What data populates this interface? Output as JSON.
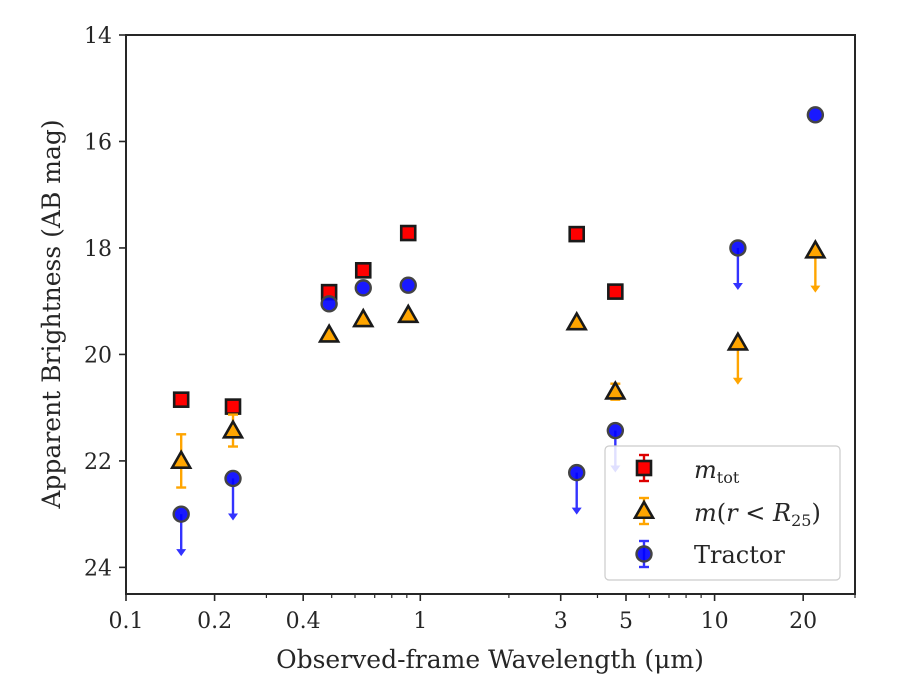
{
  "chart_data": {
    "type": "scatter",
    "xlabel": "Observed-frame Wavelength (μm)",
    "ylabel": "Apparent Brightness (AB mag)",
    "x_scale": "log",
    "xlim": [
      0.1,
      30
    ],
    "ylim": [
      24.5,
      14
    ],
    "y_inverted": true,
    "x_ticks": [
      {
        "value": 0.1,
        "label": "0.1"
      },
      {
        "value": 0.2,
        "label": "0.2"
      },
      {
        "value": 0.4,
        "label": "0.4"
      },
      {
        "value": 1,
        "label": "1"
      },
      {
        "value": 3,
        "label": "3"
      },
      {
        "value": 5,
        "label": "5"
      },
      {
        "value": 10,
        "label": "10"
      },
      {
        "value": 20,
        "label": "20"
      }
    ],
    "y_ticks": [
      {
        "value": 14,
        "label": "14"
      },
      {
        "value": 16,
        "label": "16"
      },
      {
        "value": 18,
        "label": "18"
      },
      {
        "value": 20,
        "label": "20"
      },
      {
        "value": 22,
        "label": "22"
      },
      {
        "value": 24,
        "label": "24"
      }
    ],
    "grid": false,
    "legend_position": "bottom-right",
    "series": [
      {
        "name": "m_tot",
        "marker": "square",
        "fill": "#ff0000",
        "edge": "#1a1a1a",
        "err_color": "#dd0000",
        "points": [
          {
            "x": 0.154,
            "y": 20.85
          },
          {
            "x": 0.231,
            "y": 20.98
          },
          {
            "x": 0.49,
            "y": 18.83
          },
          {
            "x": 0.64,
            "y": 18.42
          },
          {
            "x": 0.91,
            "y": 17.72
          },
          {
            "x": 3.4,
            "y": 17.74
          },
          {
            "x": 4.6,
            "y": 18.82
          }
        ]
      },
      {
        "name": "m(r < R25)",
        "marker": "triangle",
        "fill": "#ffa500",
        "edge": "#1a1a1a",
        "err_color": "#ffa500",
        "points": [
          {
            "x": 0.154,
            "y": 22.0,
            "err": 0.5
          },
          {
            "x": 0.231,
            "y": 21.43,
            "err": 0.3
          },
          {
            "x": 0.49,
            "y": 19.63
          },
          {
            "x": 0.64,
            "y": 19.34
          },
          {
            "x": 0.91,
            "y": 19.26
          },
          {
            "x": 3.4,
            "y": 19.4
          },
          {
            "x": 4.6,
            "y": 20.7,
            "err": 0.15
          },
          {
            "x": 12.0,
            "y": 19.78,
            "upper_limit": true
          },
          {
            "x": 22.0,
            "y": 18.05,
            "upper_limit": true
          }
        ]
      },
      {
        "name": "Tractor",
        "marker": "circle",
        "fill": "#0000ff",
        "edge": "#444444",
        "err_color": "#3333ff",
        "points": [
          {
            "x": 0.154,
            "y": 23.0,
            "upper_limit": true
          },
          {
            "x": 0.231,
            "y": 22.33,
            "upper_limit": true
          },
          {
            "x": 0.49,
            "y": 19.05
          },
          {
            "x": 0.64,
            "y": 18.75
          },
          {
            "x": 0.91,
            "y": 18.7
          },
          {
            "x": 3.4,
            "y": 22.22,
            "upper_limit": true
          },
          {
            "x": 4.6,
            "y": 21.43,
            "upper_limit": true
          },
          {
            "x": 12.0,
            "y": 18.0,
            "upper_limit": true
          },
          {
            "x": 22.0,
            "y": 15.5
          }
        ]
      }
    ]
  }
}
